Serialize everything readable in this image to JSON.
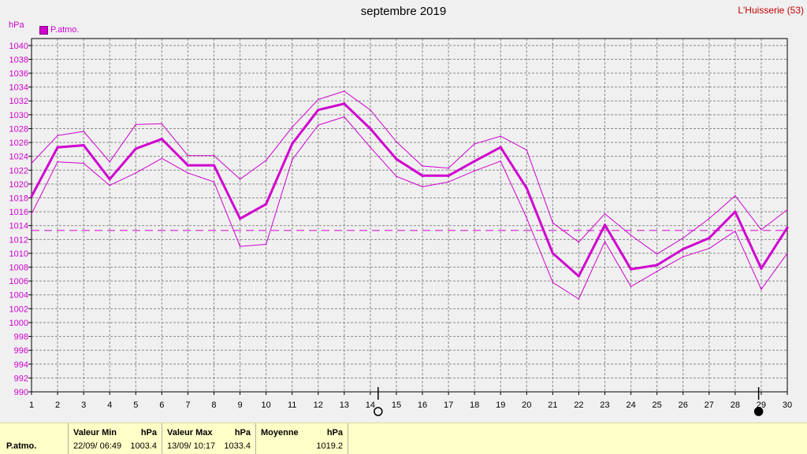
{
  "header": {
    "title": "septembre 2019",
    "station": "L'Huisserie (53)",
    "unit": "hPa",
    "legend_label": "P.atmo."
  },
  "colors": {
    "series": "#d000d0",
    "grid": "#8a8a8a",
    "plot_bg": "#f0f0f0"
  },
  "chart_data": {
    "type": "line",
    "title": "septembre 2019",
    "ylabel": "hPa",
    "xlabel": "",
    "x": [
      1,
      2,
      3,
      4,
      5,
      6,
      7,
      8,
      9,
      10,
      11,
      12,
      13,
      14,
      15,
      16,
      17,
      18,
      19,
      20,
      21,
      22,
      23,
      24,
      25,
      26,
      27,
      28,
      29,
      30
    ],
    "ylim": [
      990,
      1041
    ],
    "yticks": [
      990,
      992,
      994,
      996,
      998,
      1000,
      1002,
      1004,
      1006,
      1008,
      1010,
      1012,
      1014,
      1016,
      1018,
      1020,
      1022,
      1024,
      1026,
      1028,
      1030,
      1032,
      1034,
      1036,
      1038,
      1040
    ],
    "grid": true,
    "legend_position": "top-left",
    "series": [
      {
        "name": "P.atmo.",
        "role": "mean",
        "values": [
          1018.2,
          1025.3,
          1025.6,
          1020.7,
          1025.1,
          1026.5,
          1022.7,
          1022.7,
          1015.0,
          1017.1,
          1025.8,
          1030.7,
          1031.6,
          1028.0,
          1023.6,
          1021.2,
          1021.2,
          1023.3,
          1025.3,
          1019.4,
          1010.0,
          1006.7,
          1014.1,
          1007.7,
          1008.3,
          1010.6,
          1012.2,
          1016.0,
          1007.8,
          1013.7
        ]
      },
      {
        "role": "max",
        "values": [
          1023.0,
          1027.0,
          1027.6,
          1023.2,
          1028.6,
          1028.7,
          1024.1,
          1024.1,
          1020.7,
          1023.4,
          1028.2,
          1032.2,
          1033.4,
          1030.7,
          1026.1,
          1022.6,
          1022.3,
          1025.8,
          1026.9,
          1024.9,
          1014.4,
          1011.6,
          1015.7,
          1012.6,
          1009.9,
          1012.2,
          1015.0,
          1018.3,
          1013.4,
          1016.3
        ]
      },
      {
        "role": "min",
        "values": [
          1015.7,
          1023.2,
          1023.0,
          1019.8,
          1021.6,
          1023.7,
          1021.6,
          1020.3,
          1011.0,
          1011.3,
          1023.5,
          1028.5,
          1029.7,
          1025.3,
          1021.1,
          1019.6,
          1020.3,
          1021.9,
          1023.3,
          1015.1,
          1005.8,
          1003.4,
          1011.7,
          1005.2,
          1007.4,
          1009.5,
          1010.7,
          1013.2,
          1004.8,
          1010.0
        ]
      }
    ],
    "average_line": 1013.3,
    "moon_markers": [
      {
        "day": 14.3,
        "phase": "full-moon"
      },
      {
        "day": 28.9,
        "phase": "new-moon"
      }
    ]
  },
  "summary": {
    "row_label": "P.atmo.",
    "min": {
      "header": "Valeur Min",
      "unit": "hPa",
      "datetime": "22/09/  06:49",
      "value": "1003.4"
    },
    "max": {
      "header": "Valeur Max",
      "unit": "hPa",
      "datetime": "13/09/  10:17",
      "value": "1033.4"
    },
    "mean": {
      "header": "Moyenne",
      "unit": "hPa",
      "value": "1019.2"
    }
  }
}
